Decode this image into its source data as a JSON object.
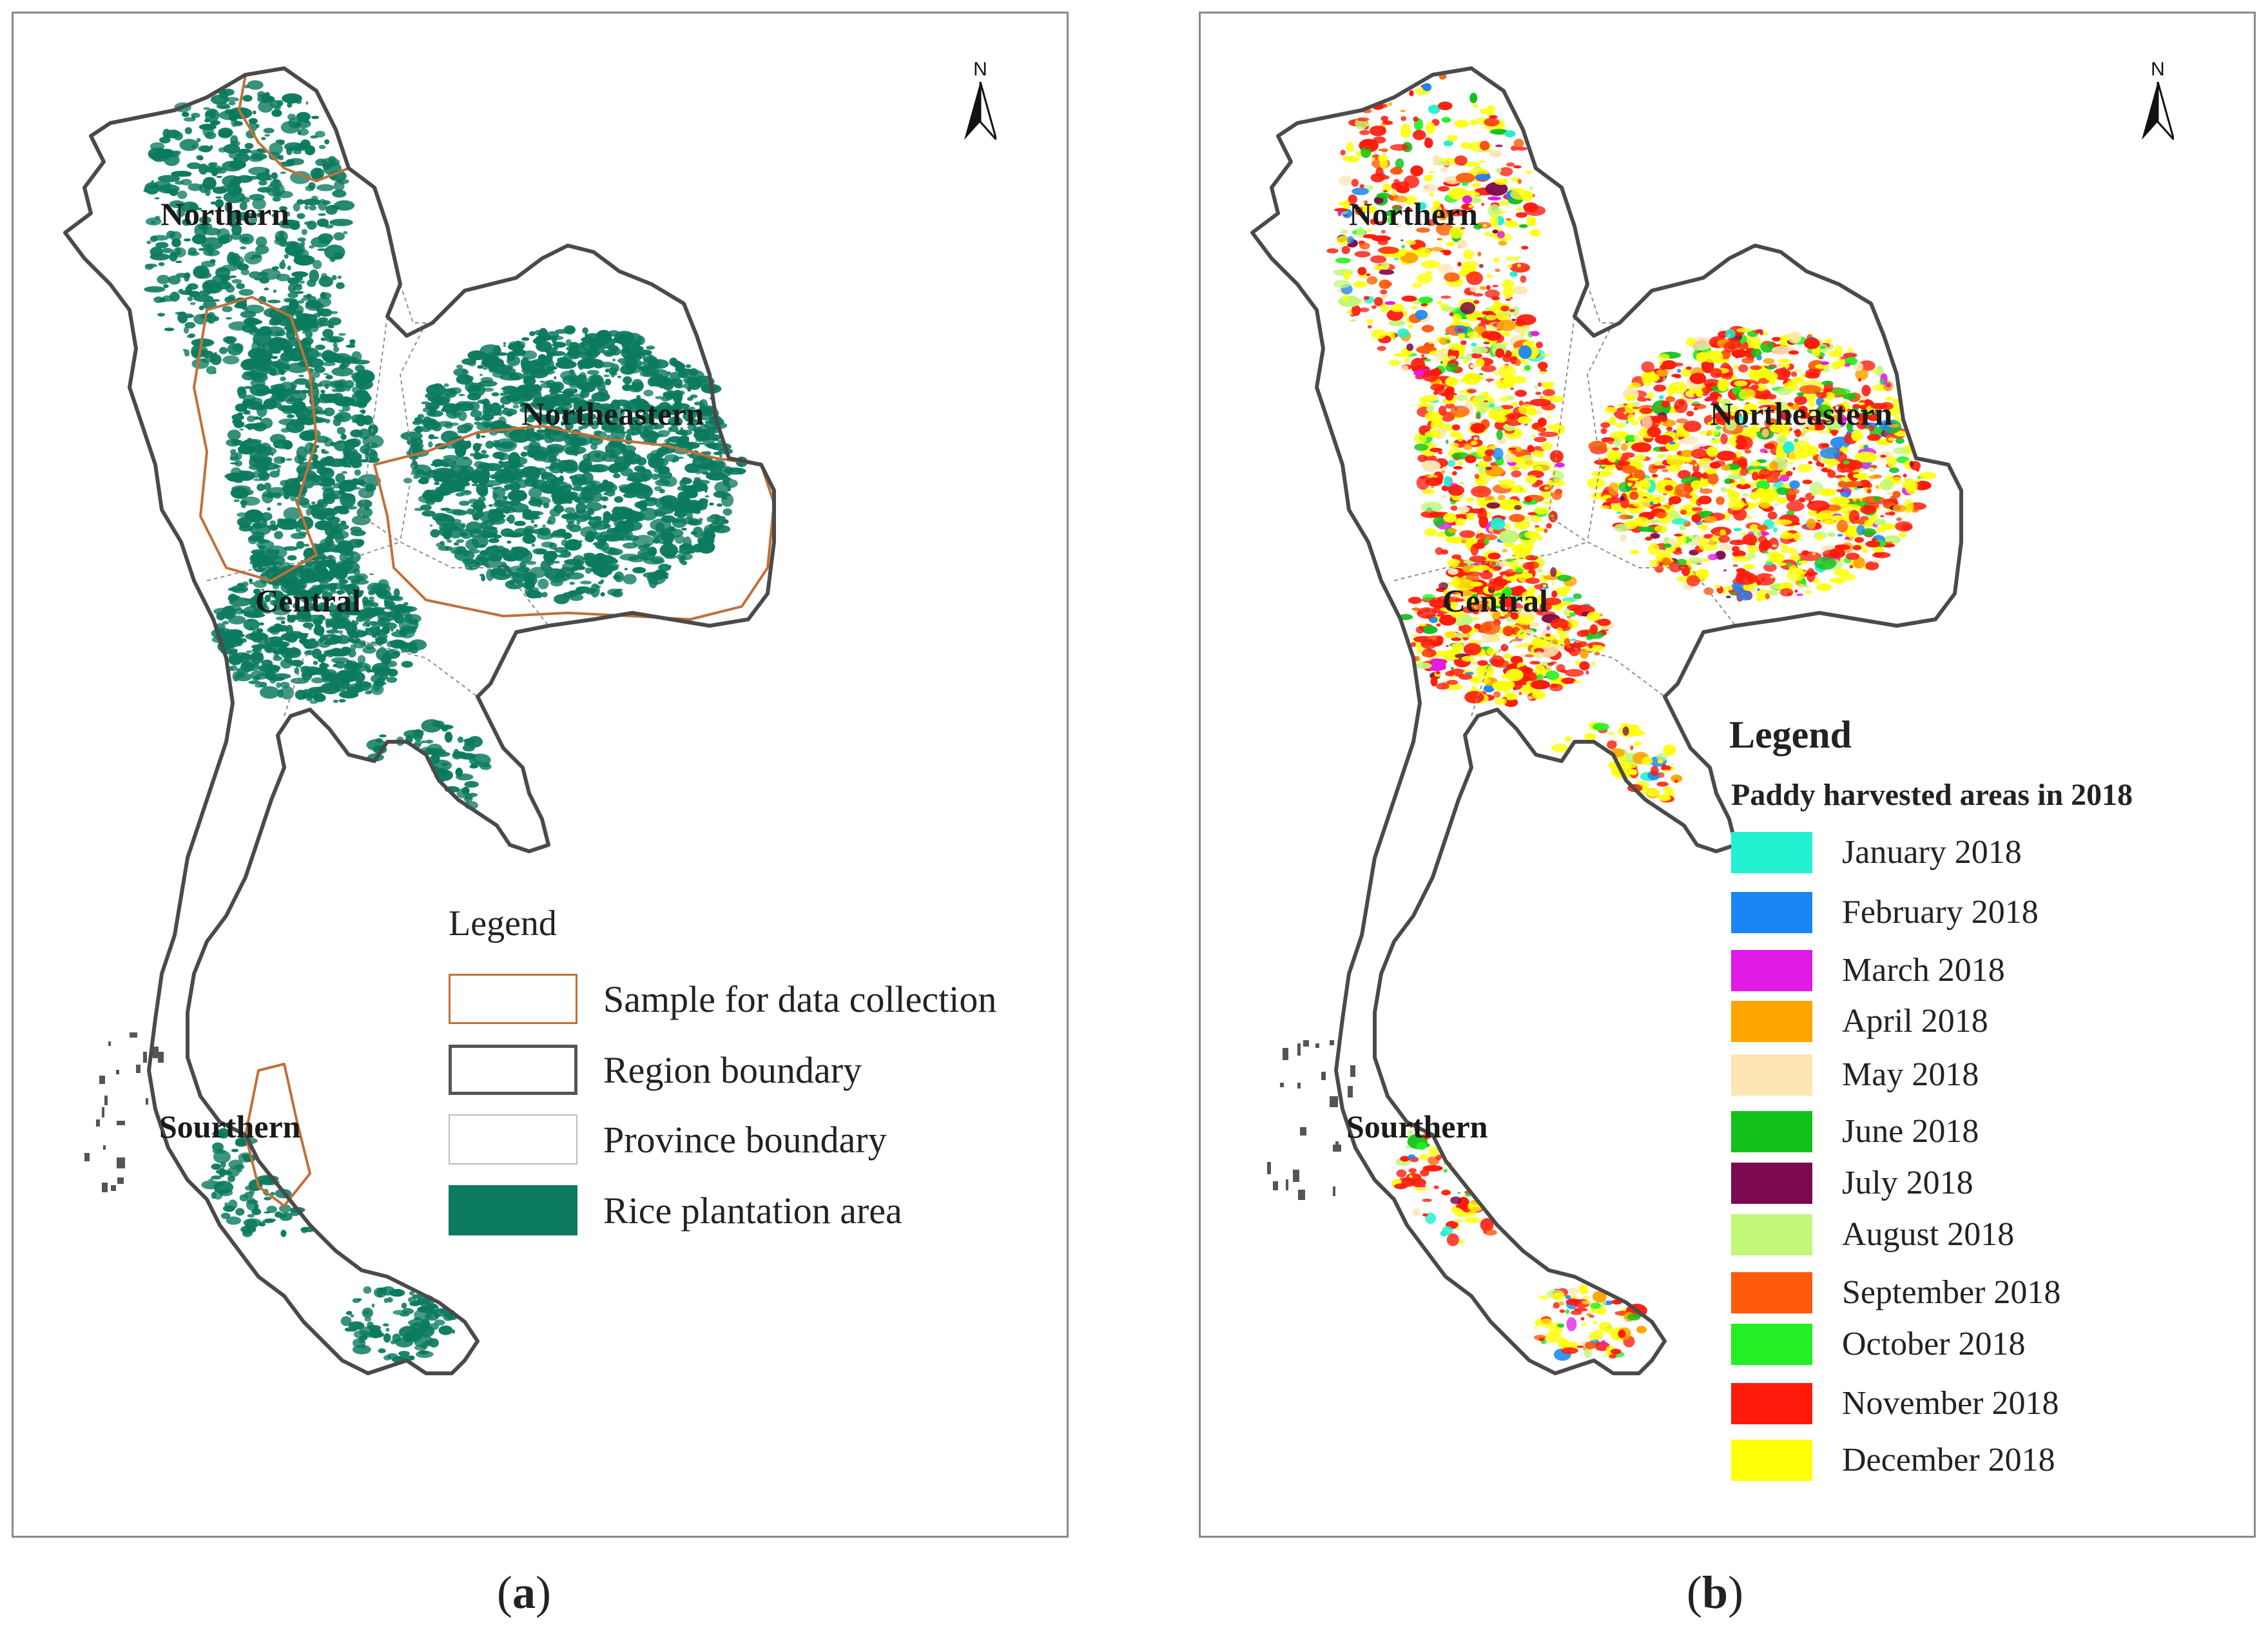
{
  "panel_a": {
    "regions": [
      {
        "label": "Northern"
      },
      {
        "label": "Northeastern"
      },
      {
        "label": "Central"
      },
      {
        "label": "Sourthern"
      }
    ],
    "north_arrow": {
      "letter": "N",
      "icon": "north-arrow-icon"
    },
    "legend": {
      "title": "Legend",
      "items": [
        {
          "label": "Sample for data collection",
          "swatch": "outline",
          "color": "#c0703a"
        },
        {
          "label": "Region boundary",
          "swatch": "outline",
          "color": "#555555"
        },
        {
          "label": "Province boundary",
          "swatch": "outline",
          "color": "#bdbdbd"
        },
        {
          "label": "Rice plantation area",
          "swatch": "fill",
          "color": "#0b7a5e"
        }
      ]
    },
    "caption": {
      "open": "(",
      "letter": "a",
      "close": ")"
    }
  },
  "panel_b": {
    "regions": [
      {
        "label": "Northern"
      },
      {
        "label": "Northeastern"
      },
      {
        "label": "Central"
      },
      {
        "label": "Sourthern"
      }
    ],
    "north_arrow": {
      "letter": "N",
      "icon": "north-arrow-icon"
    },
    "legend": {
      "title": "Legend",
      "subtitle": "Paddy harvested areas in 2018",
      "items": [
        {
          "label": "January 2018",
          "color": "#22f0d0"
        },
        {
          "label": "February 2018",
          "color": "#1a86f5"
        },
        {
          "label": "March 2018",
          "color": "#e21ae6"
        },
        {
          "label": "April 2018",
          "color": "#ffa500"
        },
        {
          "label": "May 2018",
          "color": "#fde6b4"
        },
        {
          "label": "June 2018",
          "color": "#12c21a"
        },
        {
          "label": "July 2018",
          "color": "#7d0a4e"
        },
        {
          "label": "August 2018",
          "color": "#c2f77a"
        },
        {
          "label": "September 2018",
          "color": "#ff5a0a"
        },
        {
          "label": "October 2018",
          "color": "#22f022"
        },
        {
          "label": "November 2018",
          "color": "#ff1a0a"
        },
        {
          "label": "December 2018",
          "color": "#ffff0a"
        }
      ]
    },
    "caption": {
      "open": "(",
      "letter": "b",
      "close": ")"
    }
  }
}
